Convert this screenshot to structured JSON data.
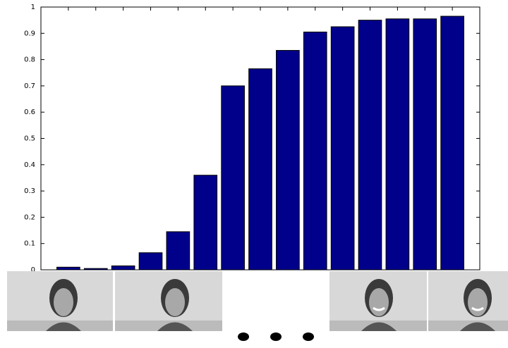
{
  "chart_data": {
    "type": "bar",
    "categories": [
      null,
      null,
      null,
      null,
      null,
      null,
      null,
      null,
      null,
      null,
      null,
      null,
      null,
      null,
      null
    ],
    "values": [
      0.01,
      0.005,
      0.015,
      0.065,
      0.145,
      0.36,
      0.7,
      0.765,
      0.835,
      0.905,
      0.925,
      0.95,
      0.955,
      0.955,
      0.965
    ],
    "color": "#00008b",
    "ylim": [
      0,
      1
    ],
    "yticks": [
      0,
      0.1,
      0.2,
      0.3,
      0.4,
      0.5,
      0.6,
      0.7,
      0.8,
      0.9,
      1
    ],
    "grid": false
  }
}
